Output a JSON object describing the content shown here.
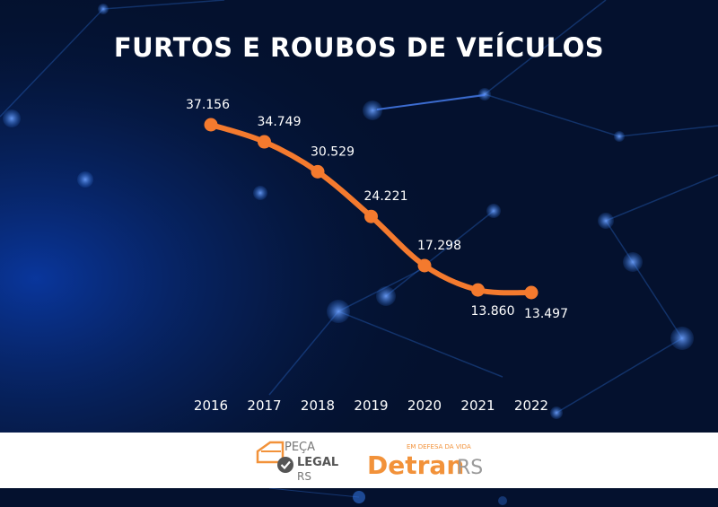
{
  "chart_data": {
    "type": "line",
    "title": "FURTOS E ROUBOS DE VEÍCULOS",
    "categories": [
      "2016",
      "2017",
      "2018",
      "2019",
      "2020",
      "2021",
      "2022"
    ],
    "values": [
      37156,
      34749,
      30529,
      24221,
      17298,
      13860,
      13497
    ],
    "value_labels": [
      "37.156",
      "34.749",
      "30.529",
      "24.221",
      "17.298",
      "13.860",
      "13.497"
    ],
    "series_color": "#f47a2e",
    "grid": false,
    "legend": "none"
  },
  "footer": {
    "peca_logo": {
      "line1": "PEÇA",
      "line2": "LEGAL",
      "line3": "RS",
      "color": "#f2923a",
      "check_color": "#555555"
    },
    "detran_logo": {
      "tagline": "EM DEFESA DA VIDA",
      "word": "Detran",
      "suffix": "RS",
      "color": "#f2923a",
      "suffix_color": "#9a9a9a"
    }
  },
  "colors": {
    "background": "#04112e",
    "network": "#2f6fd8"
  }
}
